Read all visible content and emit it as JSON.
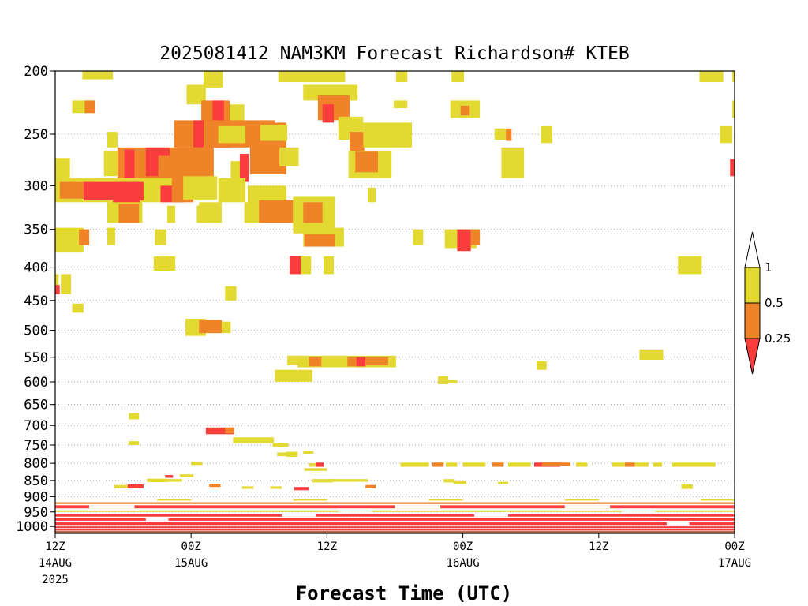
{
  "chart_data": {
    "type": "heatmap",
    "title": "2025081412 NAM3KM Forecast Richardson# KTEB",
    "xlabel": "Forecast Time (UTC)",
    "ylabel": "",
    "y_axis": {
      "scale": "log",
      "reversed": true,
      "range": [
        1025,
        200
      ],
      "ticks": [
        "200",
        "250",
        "300",
        "350",
        "400",
        "450",
        "500",
        "550",
        "600",
        "650",
        "700",
        "750",
        "800",
        "850",
        "900",
        "950",
        "1000"
      ]
    },
    "x_axis": {
      "range_hours": [
        0,
        60
      ],
      "ticks": [
        {
          "hour": 0,
          "label": "12Z",
          "date": "14AUG",
          "year": "2025"
        },
        {
          "hour": 12,
          "label": "00Z",
          "date": "15AUG",
          "year": ""
        },
        {
          "hour": 24,
          "label": "12Z",
          "date": "",
          "year": ""
        },
        {
          "hour": 36,
          "label": "00Z",
          "date": "16AUG",
          "year": ""
        },
        {
          "hour": 48,
          "label": "12Z",
          "date": "",
          "year": ""
        },
        {
          "hour": 60,
          "label": "00Z",
          "date": "17AUG",
          "year": ""
        }
      ]
    },
    "grid": "dotted horizontal at pressure ticks",
    "legend": {
      "placement": "right",
      "levels": [
        {
          "label": "1",
          "color": "#ffffff"
        },
        {
          "label": "0.5",
          "color": "#e3d933"
        },
        {
          "label": "0.25",
          "color": "#ef8328"
        },
        {
          "label": "",
          "color": "#f93d3d"
        }
      ]
    },
    "colors": {
      "yellow": "#e3d933",
      "orange": "#ef8328",
      "red": "#f93d3d",
      "ground": "#a0522d"
    },
    "category_key": "value 1 = 0.5 to 1 (yellow), 2 = 0.25 to 0.5 (orange), 3 = below 0.25 (red)",
    "patches": [
      [
        2.4,
        5.1,
        200,
        206,
        1
      ],
      [
        13.1,
        14.8,
        200,
        212,
        1
      ],
      [
        19.7,
        25.6,
        200,
        208,
        1
      ],
      [
        30.1,
        31.1,
        200,
        208,
        1
      ],
      [
        35,
        36.1,
        200,
        208,
        1
      ],
      [
        56.9,
        59,
        200,
        208,
        1
      ],
      [
        59.8,
        60,
        200,
        208,
        1
      ],
      [
        1.5,
        3.5,
        222,
        232,
        1
      ],
      [
        2.6,
        3.5,
        222,
        232,
        2
      ],
      [
        11.6,
        13.3,
        210,
        225,
        1
      ],
      [
        12.9,
        15.4,
        222,
        240,
        2
      ],
      [
        13.9,
        14.9,
        222,
        246,
        3
      ],
      [
        15.4,
        16.7,
        225,
        240,
        1
      ],
      [
        21.9,
        26.7,
        210,
        222,
        1
      ],
      [
        23.2,
        26,
        218,
        238,
        2
      ],
      [
        23.6,
        24.6,
        225,
        240,
        3
      ],
      [
        29.9,
        31.1,
        222,
        228,
        1
      ],
      [
        34.9,
        37.5,
        222,
        236,
        1
      ],
      [
        35.8,
        36.6,
        226,
        234,
        2
      ],
      [
        59.8,
        60,
        222,
        236,
        1
      ],
      [
        10.5,
        14.2,
        238,
        262,
        2
      ],
      [
        12.2,
        15.5,
        238,
        262,
        3
      ],
      [
        13.1,
        19.4,
        238,
        262,
        2
      ],
      [
        17.2,
        20.4,
        240,
        288,
        2
      ],
      [
        14.4,
        16.8,
        243,
        258,
        1
      ],
      [
        18.1,
        20.5,
        242,
        256,
        1
      ],
      [
        4.6,
        5.5,
        248,
        262,
        1
      ],
      [
        25,
        27.2,
        235,
        255,
        1
      ],
      [
        26,
        27.3,
        248,
        275,
        2
      ],
      [
        27.2,
        31.5,
        240,
        262,
        1
      ],
      [
        38.8,
        40,
        245,
        255,
        1
      ],
      [
        39.8,
        40.3,
        245,
        256,
        2
      ],
      [
        42.9,
        43.9,
        243,
        258,
        1
      ],
      [
        58.7,
        59.8,
        243,
        258,
        1
      ],
      [
        0,
        1.3,
        272,
        300,
        1
      ],
      [
        4.3,
        7.4,
        265,
        290,
        1
      ],
      [
        5.5,
        14,
        262,
        300,
        2
      ],
      [
        6.1,
        7,
        264,
        312,
        3
      ],
      [
        8,
        10.1,
        262,
        290,
        3
      ],
      [
        9.1,
        10.3,
        270,
        296,
        2
      ],
      [
        10.6,
        13.5,
        262,
        285,
        2
      ],
      [
        15.5,
        16.7,
        275,
        295,
        1
      ],
      [
        16.3,
        17.1,
        268,
        296,
        3
      ],
      [
        19.8,
        21.5,
        262,
        280,
        1
      ],
      [
        25.9,
        29.7,
        265,
        292,
        1
      ],
      [
        26.5,
        28.5,
        266,
        286,
        2
      ],
      [
        39.4,
        41.4,
        262,
        292,
        1
      ],
      [
        59.6,
        60,
        273,
        290,
        3
      ],
      [
        0,
        10.3,
        292,
        318,
        1
      ],
      [
        0.4,
        3,
        296,
        314,
        2
      ],
      [
        2.5,
        7.8,
        296,
        316,
        3
      ],
      [
        5.1,
        7.5,
        305,
        330,
        3
      ],
      [
        9.3,
        11.4,
        300,
        318,
        3
      ],
      [
        10.3,
        12.2,
        296,
        318,
        2
      ],
      [
        11.3,
        14.3,
        290,
        315,
        1
      ],
      [
        14.4,
        16.8,
        292,
        318,
        1
      ],
      [
        17,
        20.4,
        300,
        322,
        1
      ],
      [
        27.6,
        28.3,
        302,
        318,
        1
      ],
      [
        4.6,
        7.7,
        318,
        342,
        1
      ],
      [
        5.6,
        7.4,
        320,
        342,
        2
      ],
      [
        9.9,
        10.6,
        322,
        342,
        1
      ],
      [
        12.5,
        13.3,
        322,
        342,
        1
      ],
      [
        12.7,
        14.7,
        318,
        342,
        1
      ],
      [
        16.7,
        18.6,
        318,
        342,
        1
      ],
      [
        18,
        21,
        316,
        342,
        2
      ],
      [
        21,
        24.7,
        312,
        355,
        1
      ],
      [
        21.9,
        23.6,
        318,
        342,
        2
      ],
      [
        0,
        2.5,
        348,
        380,
        1
      ],
      [
        2.1,
        3,
        350,
        370,
        2
      ],
      [
        4.6,
        5.3,
        348,
        370,
        1
      ],
      [
        8.8,
        9.8,
        350,
        370,
        1
      ],
      [
        21.9,
        25.5,
        348,
        372,
        1
      ],
      [
        22,
        24.7,
        356,
        372,
        2
      ],
      [
        31.6,
        32.5,
        350,
        370,
        1
      ],
      [
        34.4,
        37.2,
        350,
        374,
        1
      ],
      [
        35.5,
        36.7,
        350,
        378,
        3
      ],
      [
        36.7,
        37.5,
        350,
        370,
        2
      ],
      [
        8.7,
        10.6,
        385,
        405,
        1
      ],
      [
        20.7,
        21.7,
        385,
        410,
        3
      ],
      [
        21.7,
        22.6,
        385,
        410,
        1
      ],
      [
        23.7,
        24.6,
        385,
        410,
        1
      ],
      [
        55,
        57.1,
        385,
        410,
        1
      ],
      [
        0,
        0.3,
        410,
        430,
        1
      ],
      [
        0,
        0.4,
        426,
        440,
        3
      ],
      [
        0.5,
        1.4,
        410,
        440,
        1
      ],
      [
        15,
        16,
        428,
        450,
        1
      ],
      [
        1.5,
        2.5,
        455,
        470,
        1
      ],
      [
        11.5,
        13.3,
        480,
        510,
        1
      ],
      [
        12.7,
        14.7,
        482,
        505,
        2
      ],
      [
        14.7,
        15.5,
        485,
        505,
        1
      ],
      [
        51.6,
        53.7,
        535,
        555,
        1
      ],
      [
        20.5,
        21.5,
        547,
        566,
        1
      ],
      [
        21.4,
        30.1,
        547,
        570,
        1
      ],
      [
        22.4,
        23.5,
        550,
        568,
        2
      ],
      [
        25.8,
        27.4,
        550,
        568,
        2
      ],
      [
        26.6,
        27.4,
        550,
        568,
        3
      ],
      [
        27.4,
        29.4,
        550,
        566,
        2
      ],
      [
        42.5,
        43.4,
        558,
        575,
        1
      ],
      [
        19.4,
        22.7,
        575,
        600,
        1
      ],
      [
        33.8,
        34.7,
        588,
        605,
        1
      ],
      [
        34.4,
        35.5,
        596,
        603,
        1
      ],
      [
        6.5,
        7.4,
        670,
        685,
        1
      ],
      [
        13.3,
        15.8,
        705,
        722,
        3
      ],
      [
        15,
        15.8,
        705,
        720,
        2
      ],
      [
        15.7,
        19.3,
        730,
        745,
        1
      ],
      [
        19.2,
        20.6,
        745,
        755,
        1
      ],
      [
        6.5,
        7.4,
        740,
        750,
        1
      ],
      [
        20.4,
        21.4,
        768,
        782,
        1
      ],
      [
        19.6,
        20.5,
        770,
        780,
        1
      ],
      [
        21.9,
        22.8,
        766,
        774,
        1
      ],
      [
        12,
        13,
        795,
        805,
        1
      ],
      [
        22.4,
        23.5,
        800,
        810,
        1
      ],
      [
        23,
        23.7,
        798,
        810,
        3
      ],
      [
        30.5,
        33,
        798,
        810,
        1
      ],
      [
        33.3,
        34.3,
        798,
        810,
        2
      ],
      [
        34.5,
        35.5,
        798,
        810,
        1
      ],
      [
        36,
        38,
        798,
        810,
        1
      ],
      [
        38.6,
        39.6,
        798,
        810,
        2
      ],
      [
        40,
        42,
        798,
        810,
        1
      ],
      [
        42.3,
        44.6,
        798,
        810,
        3
      ],
      [
        43,
        45.5,
        798,
        808,
        2
      ],
      [
        46,
        47,
        798,
        810,
        1
      ],
      [
        49.2,
        50.3,
        798,
        810,
        1
      ],
      [
        50.3,
        51.2,
        798,
        810,
        2
      ],
      [
        51.2,
        52.4,
        798,
        810,
        1
      ],
      [
        52.8,
        53.6,
        798,
        810,
        1
      ],
      [
        54.5,
        58.3,
        798,
        810,
        1
      ],
      [
        22,
        24,
        814,
        822,
        1
      ],
      [
        11,
        12.2,
        832,
        840,
        1
      ],
      [
        9.7,
        10.4,
        834,
        842,
        3
      ],
      [
        8.1,
        10,
        845,
        855,
        1
      ],
      [
        9.8,
        11.2,
        846,
        854,
        1
      ],
      [
        22.7,
        24.5,
        846,
        856,
        1
      ],
      [
        24.2,
        27.6,
        846,
        854,
        1
      ],
      [
        34.3,
        35.3,
        846,
        856,
        1
      ],
      [
        35.2,
        36.3,
        850,
        860,
        1
      ],
      [
        39.1,
        40,
        854,
        860,
        1
      ],
      [
        5.2,
        6.9,
        864,
        874,
        1
      ],
      [
        6.4,
        7.8,
        862,
        874,
        3
      ],
      [
        13.6,
        14.6,
        860,
        870,
        2
      ],
      [
        16.5,
        17.5,
        868,
        876,
        1
      ],
      [
        19,
        20,
        868,
        876,
        1
      ],
      [
        21.1,
        22.4,
        870,
        880,
        3
      ],
      [
        27.4,
        28.3,
        864,
        874,
        2
      ],
      [
        55.3,
        56.3,
        862,
        876,
        1
      ]
    ],
    "bands": [
      [
        [
          0,
          60,
          908,
          913,
          1
        ],
        [
          0,
          60,
          918,
          924,
          2
        ],
        [
          0,
          60,
          928,
          938,
          3
        ],
        [
          0,
          60,
          945,
          950,
          1
        ],
        [
          0,
          60,
          958,
          966,
          3
        ],
        [
          0,
          60,
          972,
          980,
          3
        ],
        [
          0,
          60,
          985,
          995,
          3
        ],
        [
          0,
          60,
          1000,
          1006,
          3
        ]
      ],
      [
        [
          0,
          60,
          1010,
          1015,
          3
        ],
        [
          0,
          60,
          1018,
          1025,
          3
        ]
      ]
    ],
    "gaps": [
      [
        0,
        9,
        908,
        913
      ],
      [
        12,
        21,
        908,
        913
      ],
      [
        24,
        33,
        908,
        913
      ],
      [
        36,
        45,
        908,
        913
      ],
      [
        48,
        57,
        908,
        913
      ],
      [
        3,
        7,
        928,
        938
      ],
      [
        30,
        34,
        928,
        938
      ],
      [
        45,
        49,
        928,
        938
      ],
      [
        25,
        28,
        945,
        950
      ],
      [
        50,
        53,
        945,
        950
      ],
      [
        20,
        23,
        958,
        966
      ],
      [
        37,
        40,
        958,
        966
      ],
      [
        8,
        10,
        972,
        980
      ],
      [
        54,
        56,
        985,
        995
      ]
    ],
    "ground_hpa": [
      1017,
      1025
    ]
  }
}
